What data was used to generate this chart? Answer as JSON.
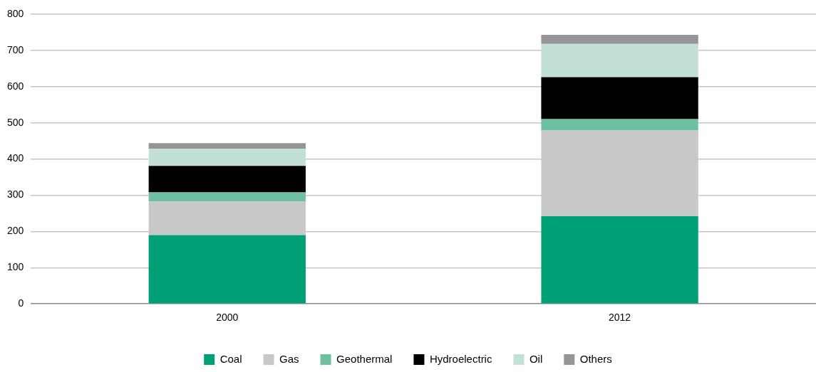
{
  "chart_data": {
    "type": "bar",
    "stacked": true,
    "categories": [
      "2000",
      "2012"
    ],
    "series": [
      {
        "name": "Coal",
        "color": "#00a077",
        "values": [
          190,
          242
        ]
      },
      {
        "name": "Gas",
        "color": "#c7c8ca",
        "values": [
          93,
          237
        ]
      },
      {
        "name": "Geothermal",
        "color": "#6fbfa1",
        "values": [
          25,
          31
        ]
      },
      {
        "name": "Hydroelectric",
        "color": "#000000",
        "values": [
          73,
          116
        ]
      },
      {
        "name": "Oil",
        "color": "#c3e0d4",
        "values": [
          47,
          92
        ]
      },
      {
        "name": "Others",
        "color": "#939598",
        "values": [
          16,
          25
        ]
      }
    ],
    "ylim": [
      0,
      800
    ],
    "yticks": [
      0,
      100,
      200,
      300,
      400,
      500,
      600,
      700,
      800
    ],
    "grid": "y",
    "legend": "bottom"
  }
}
